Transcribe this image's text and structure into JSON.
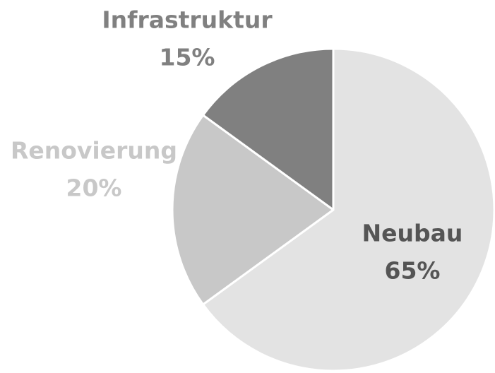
{
  "chart_data": {
    "type": "pie",
    "categories": [
      "Neubau",
      "Renovierung",
      "Infrastruktur"
    ],
    "values": [
      65,
      20,
      15
    ],
    "value_labels": [
      "65%",
      "20%",
      "15%"
    ],
    "colors": [
      "#e3e3e3",
      "#c8c8c8",
      "#808080"
    ]
  }
}
